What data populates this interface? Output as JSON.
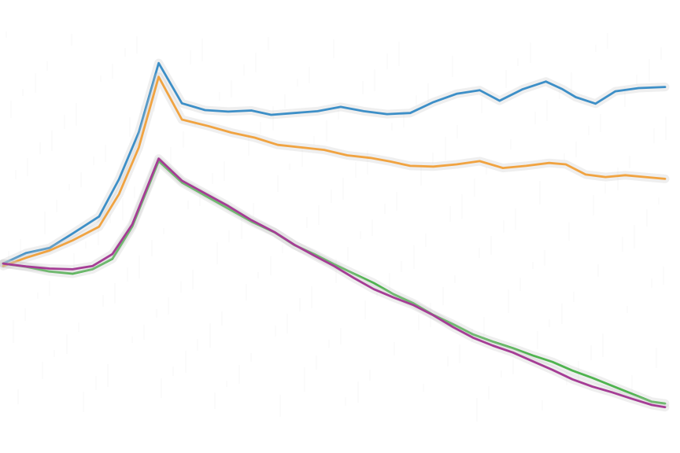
{
  "chart_data": {
    "type": "line",
    "title": "",
    "xlabel": "",
    "ylabel": "",
    "grid": false,
    "legend": "none",
    "xlim": [
      0,
      100
    ],
    "ylim": [
      0,
      100
    ],
    "series": [
      {
        "color": "#3d8fc7",
        "points": [
          [
            0,
            40.2
          ],
          [
            3.5,
            43.1
          ],
          [
            7,
            44.5
          ],
          [
            10.5,
            48.5
          ],
          [
            14.5,
            53.2
          ],
          [
            17.5,
            63.5
          ],
          [
            20.5,
            76.5
          ],
          [
            23.5,
            95.6
          ],
          [
            27,
            84.5
          ],
          [
            30.5,
            82.6
          ],
          [
            34,
            82.2
          ],
          [
            37.5,
            82.5
          ],
          [
            40.5,
            81.3
          ],
          [
            44,
            81.8
          ],
          [
            47.5,
            82.3
          ],
          [
            51,
            83.5
          ],
          [
            54.5,
            82.3
          ],
          [
            58,
            81.5
          ],
          [
            61.5,
            81.8
          ],
          [
            65,
            84.8
          ],
          [
            68.5,
            87.1
          ],
          [
            72,
            88.1
          ],
          [
            75,
            85.2
          ],
          [
            78.5,
            88.4
          ],
          [
            82,
            90.5
          ],
          [
            84.5,
            88.4
          ],
          [
            86.5,
            86.2
          ],
          [
            89.5,
            84.4
          ],
          [
            92.5,
            87.8
          ],
          [
            96,
            88.7
          ],
          [
            100,
            89.0
          ]
        ]
      },
      {
        "color": "#f0a341",
        "points": [
          [
            0,
            39.5
          ],
          [
            3.5,
            41.8
          ],
          [
            7,
            43.8
          ],
          [
            10.5,
            46.6
          ],
          [
            14.5,
            50.4
          ],
          [
            17.5,
            59.4
          ],
          [
            20.5,
            72.3
          ],
          [
            23.5,
            91.8
          ],
          [
            27,
            80.0
          ],
          [
            31,
            78.2
          ],
          [
            34.5,
            76.4
          ],
          [
            38,
            75.0
          ],
          [
            41.5,
            73.0
          ],
          [
            45,
            72.3
          ],
          [
            48.5,
            71.6
          ],
          [
            52,
            70.1
          ],
          [
            55.5,
            69.4
          ],
          [
            58.5,
            68.4
          ],
          [
            61.5,
            67.2
          ],
          [
            65,
            67.0
          ],
          [
            68.5,
            67.6
          ],
          [
            72,
            68.5
          ],
          [
            75.5,
            66.6
          ],
          [
            79,
            67.2
          ],
          [
            82.5,
            68.0
          ],
          [
            85,
            67.6
          ],
          [
            88,
            64.8
          ],
          [
            91,
            64.1
          ],
          [
            94,
            64.6
          ],
          [
            97,
            64.1
          ],
          [
            100,
            63.6
          ]
        ]
      },
      {
        "color": "#4fb34f",
        "points": [
          [
            0,
            40.2
          ],
          [
            3.5,
            39.3
          ],
          [
            7,
            38.0
          ],
          [
            10.5,
            37.4
          ],
          [
            13.5,
            38.6
          ],
          [
            16.5,
            41.5
          ],
          [
            19.5,
            50.4
          ],
          [
            23.5,
            68.5
          ],
          [
            27,
            62.6
          ],
          [
            30.5,
            59.0
          ],
          [
            34,
            55.4
          ],
          [
            37.5,
            51.8
          ],
          [
            41,
            48.8
          ],
          [
            44,
            45.3
          ],
          [
            47,
            42.8
          ],
          [
            50,
            40.0
          ],
          [
            53,
            37.4
          ],
          [
            56,
            34.8
          ],
          [
            59,
            31.7
          ],
          [
            62,
            29.2
          ],
          [
            65,
            26.0
          ],
          [
            68,
            23.4
          ],
          [
            71,
            20.6
          ],
          [
            74,
            18.6
          ],
          [
            77,
            16.8
          ],
          [
            80,
            14.8
          ],
          [
            83,
            13.0
          ],
          [
            86,
            10.6
          ],
          [
            89,
            8.6
          ],
          [
            92,
            6.4
          ],
          [
            95,
            4.2
          ],
          [
            98,
            2.0
          ],
          [
            100,
            1.5
          ]
        ]
      },
      {
        "color": "#a53d95",
        "points": [
          [
            0,
            40.2
          ],
          [
            3.5,
            39.4
          ],
          [
            7,
            38.8
          ],
          [
            10.5,
            38.6
          ],
          [
            13.5,
            39.5
          ],
          [
            16.5,
            42.8
          ],
          [
            19.5,
            51.0
          ],
          [
            23.5,
            69.2
          ],
          [
            27,
            63.1
          ],
          [
            30.5,
            59.6
          ],
          [
            34,
            56.1
          ],
          [
            37.5,
            52.2
          ],
          [
            41,
            48.9
          ],
          [
            44,
            45.4
          ],
          [
            47,
            42.4
          ],
          [
            50,
            39.5
          ],
          [
            53,
            36.2
          ],
          [
            56,
            33.1
          ],
          [
            59,
            30.8
          ],
          [
            62,
            28.7
          ],
          [
            65,
            25.9
          ],
          [
            68,
            22.6
          ],
          [
            71,
            19.7
          ],
          [
            74,
            17.5
          ],
          [
            77,
            15.6
          ],
          [
            80,
            13.2
          ],
          [
            83,
            10.8
          ],
          [
            86,
            8.2
          ],
          [
            89,
            6.2
          ],
          [
            92,
            4.6
          ],
          [
            95,
            2.8
          ],
          [
            98,
            1.1
          ],
          [
            100,
            0.5
          ]
        ]
      }
    ]
  }
}
